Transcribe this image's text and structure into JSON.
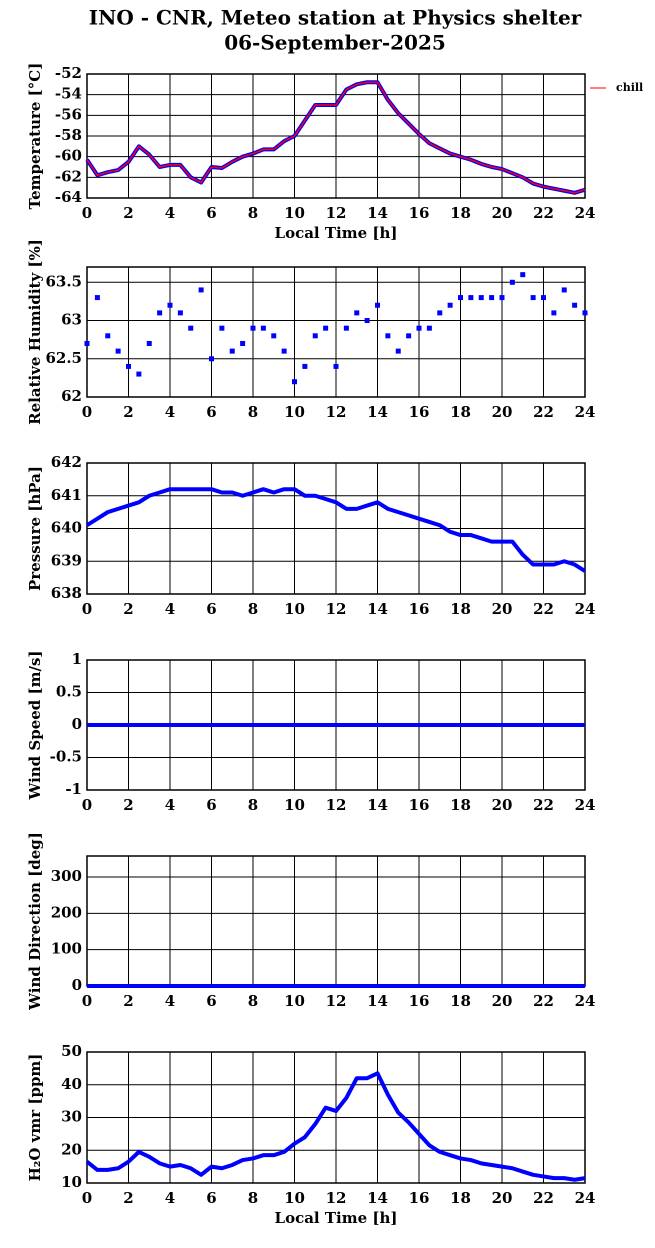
{
  "chart_data": [
    {
      "type": "line",
      "title": "INO - CNR, Meteo station at Physics shelter",
      "subtitle": "06-September-2025",
      "ylabel": "Temperature [°C]",
      "xlabel": "Local Time [h]",
      "x": [
        0,
        0.5,
        1,
        1.5,
        2,
        2.5,
        3,
        3.5,
        4,
        4.5,
        5,
        5.5,
        6,
        6.5,
        7,
        7.5,
        8,
        8.5,
        9,
        9.5,
        10,
        10.5,
        11,
        11.5,
        12,
        12.5,
        13,
        13.5,
        14,
        14.5,
        15,
        15.5,
        16,
        16.5,
        17,
        17.5,
        18,
        18.5,
        19,
        19.5,
        20,
        20.5,
        21,
        21.5,
        22,
        22.5,
        23,
        23.5,
        24
      ],
      "series": [
        {
          "name": "chill",
          "color": "#ff0000",
          "marker_color": "#0000ff",
          "values": [
            -60.3,
            -61.8,
            -61.5,
            -61.3,
            -60.5,
            -59.0,
            -59.8,
            -61.0,
            -60.8,
            -60.8,
            -62.0,
            -62.5,
            -61.0,
            -61.1,
            -60.5,
            -60.0,
            -59.7,
            -59.3,
            -59.3,
            -58.5,
            -58.0,
            -56.5,
            -55.0,
            -55.0,
            -55.0,
            -53.5,
            -53.0,
            -52.8,
            -52.8,
            -54.5,
            -55.8,
            -56.8,
            -57.8,
            -58.7,
            -59.2,
            -59.7,
            -60.0,
            -60.3,
            -60.7,
            -61.0,
            -61.2,
            -61.6,
            -62.0,
            -62.6,
            -62.9,
            -63.1,
            -63.3,
            -63.5,
            -63.2
          ]
        }
      ],
      "xlim": [
        0,
        24
      ],
      "xticks": [
        0,
        2,
        4,
        6,
        8,
        10,
        12,
        14,
        16,
        18,
        20,
        22,
        24
      ],
      "ylim": [
        -64,
        -52
      ],
      "yticks": [
        -64,
        -62,
        -60,
        -58,
        -56,
        -54,
        -52
      ],
      "grid": true,
      "legend": "outside-right"
    },
    {
      "type": "scatter",
      "ylabel": "Relative Humidity [%]",
      "x": [
        0,
        0.5,
        1,
        1.5,
        2,
        2.5,
        3,
        3.5,
        4,
        4.5,
        5,
        5.5,
        6,
        6.5,
        7,
        7.5,
        8,
        8.5,
        9,
        9.5,
        10,
        10.5,
        11,
        11.5,
        12,
        12.5,
        13,
        13.5,
        14,
        14.5,
        15,
        15.5,
        16,
        16.5,
        17,
        17.5,
        18,
        18.5,
        19,
        19.5,
        20,
        20.5,
        21,
        21.5,
        22,
        22.5,
        23,
        23.5,
        24
      ],
      "series": [
        {
          "color": "#0000ff",
          "values": [
            62.7,
            63.3,
            62.8,
            62.6,
            62.4,
            62.3,
            62.7,
            63.1,
            63.2,
            63.1,
            62.9,
            63.4,
            62.5,
            62.9,
            62.6,
            62.7,
            62.9,
            62.9,
            62.8,
            62.6,
            62.2,
            62.4,
            62.8,
            62.9,
            62.4,
            62.9,
            63.1,
            63.0,
            63.2,
            62.8,
            62.6,
            62.8,
            62.9,
            62.9,
            63.1,
            63.2,
            63.3,
            63.3,
            63.3,
            63.3,
            63.3,
            63.5,
            63.6,
            63.3,
            63.3,
            63.1,
            63.4,
            63.2,
            63.1
          ]
        }
      ],
      "xlim": [
        0,
        24
      ],
      "xticks": [
        0,
        2,
        4,
        6,
        8,
        10,
        12,
        14,
        16,
        18,
        20,
        22,
        24
      ],
      "ylim": [
        62,
        63.7
      ],
      "yticks": [
        62,
        62.5,
        63,
        63.5
      ],
      "grid": true
    },
    {
      "type": "line",
      "ylabel": "Pressure [hPa]",
      "x": [
        0,
        0.5,
        1,
        1.5,
        2,
        2.5,
        3,
        3.5,
        4,
        4.5,
        5,
        5.5,
        6,
        6.5,
        7,
        7.5,
        8,
        8.5,
        9,
        9.5,
        10,
        10.5,
        11,
        11.5,
        12,
        12.5,
        13,
        13.5,
        14,
        14.5,
        15,
        15.5,
        16,
        16.5,
        17,
        17.5,
        18,
        18.5,
        19,
        19.5,
        20,
        20.5,
        21,
        21.5,
        22,
        22.5,
        23,
        23.5,
        24
      ],
      "series": [
        {
          "color": "#0000ff",
          "values": [
            640.1,
            640.3,
            640.5,
            640.6,
            640.7,
            640.8,
            641.0,
            641.1,
            641.2,
            641.2,
            641.2,
            641.2,
            641.2,
            641.1,
            641.1,
            641.0,
            641.1,
            641.2,
            641.1,
            641.2,
            641.2,
            641.0,
            641.0,
            640.9,
            640.8,
            640.6,
            640.6,
            640.7,
            640.8,
            640.6,
            640.5,
            640.4,
            640.3,
            640.2,
            640.1,
            639.9,
            639.8,
            639.8,
            639.7,
            639.6,
            639.6,
            639.6,
            639.2,
            638.9,
            638.9,
            638.9,
            639.0,
            638.9,
            638.7
          ]
        }
      ],
      "xlim": [
        0,
        24
      ],
      "xticks": [
        0,
        2,
        4,
        6,
        8,
        10,
        12,
        14,
        16,
        18,
        20,
        22,
        24
      ],
      "ylim": [
        638,
        642
      ],
      "yticks": [
        638,
        639,
        640,
        641,
        642
      ],
      "grid": true
    },
    {
      "type": "line",
      "ylabel": "Wind Speed [m/s]",
      "x": [
        0,
        24
      ],
      "series": [
        {
          "color": "#0000ff",
          "values": [
            0,
            0
          ]
        }
      ],
      "xlim": [
        0,
        24
      ],
      "xticks": [
        0,
        2,
        4,
        6,
        8,
        10,
        12,
        14,
        16,
        18,
        20,
        22,
        24
      ],
      "ylim": [
        -1,
        1
      ],
      "yticks": [
        -1,
        -0.5,
        0,
        0.5,
        1
      ],
      "grid": true
    },
    {
      "type": "line",
      "ylabel": "Wind Direction [deg]",
      "x": [
        0,
        24
      ],
      "series": [
        {
          "color": "#0000ff",
          "values": [
            0,
            0
          ]
        }
      ],
      "xlim": [
        0,
        24
      ],
      "xticks": [
        0,
        2,
        4,
        6,
        8,
        10,
        12,
        14,
        16,
        18,
        20,
        22,
        24
      ],
      "ylim": [
        0,
        358
      ],
      "yticks": [
        0,
        100,
        200,
        300
      ],
      "grid": true
    },
    {
      "type": "line",
      "ylabel": "H₂O vmr [ppm]",
      "xlabel": "Local Time [h]",
      "x": [
        0,
        0.5,
        1,
        1.5,
        2,
        2.5,
        3,
        3.5,
        4,
        4.5,
        5,
        5.5,
        6,
        6.5,
        7,
        7.5,
        8,
        8.5,
        9,
        9.5,
        10,
        10.5,
        11,
        11.5,
        12,
        12.5,
        13,
        13.5,
        14,
        14.5,
        15,
        15.5,
        16,
        16.5,
        17,
        17.5,
        18,
        18.5,
        19,
        19.5,
        20,
        20.5,
        21,
        21.5,
        22,
        22.5,
        23,
        23.5,
        24
      ],
      "series": [
        {
          "color": "#0000ff",
          "values": [
            16.5,
            14,
            14,
            14.5,
            16.5,
            19.5,
            18,
            16,
            15,
            15.5,
            14.5,
            12.5,
            15,
            14.5,
            15.5,
            17,
            17.5,
            18.5,
            18.5,
            19.5,
            22,
            24,
            28,
            33,
            32,
            36,
            42,
            42,
            43.5,
            37,
            31.5,
            28.5,
            25,
            21.5,
            19.5,
            18.5,
            17.5,
            17,
            16,
            15.5,
            15,
            14.5,
            13.5,
            12.5,
            12,
            11.5,
            11.5,
            11,
            11.5
          ]
        }
      ],
      "xlim": [
        0,
        24
      ],
      "xticks": [
        0,
        2,
        4,
        6,
        8,
        10,
        12,
        14,
        16,
        18,
        20,
        22,
        24
      ],
      "ylim": [
        10,
        50
      ],
      "yticks": [
        10,
        20,
        30,
        40,
        50
      ],
      "grid": true
    }
  ]
}
